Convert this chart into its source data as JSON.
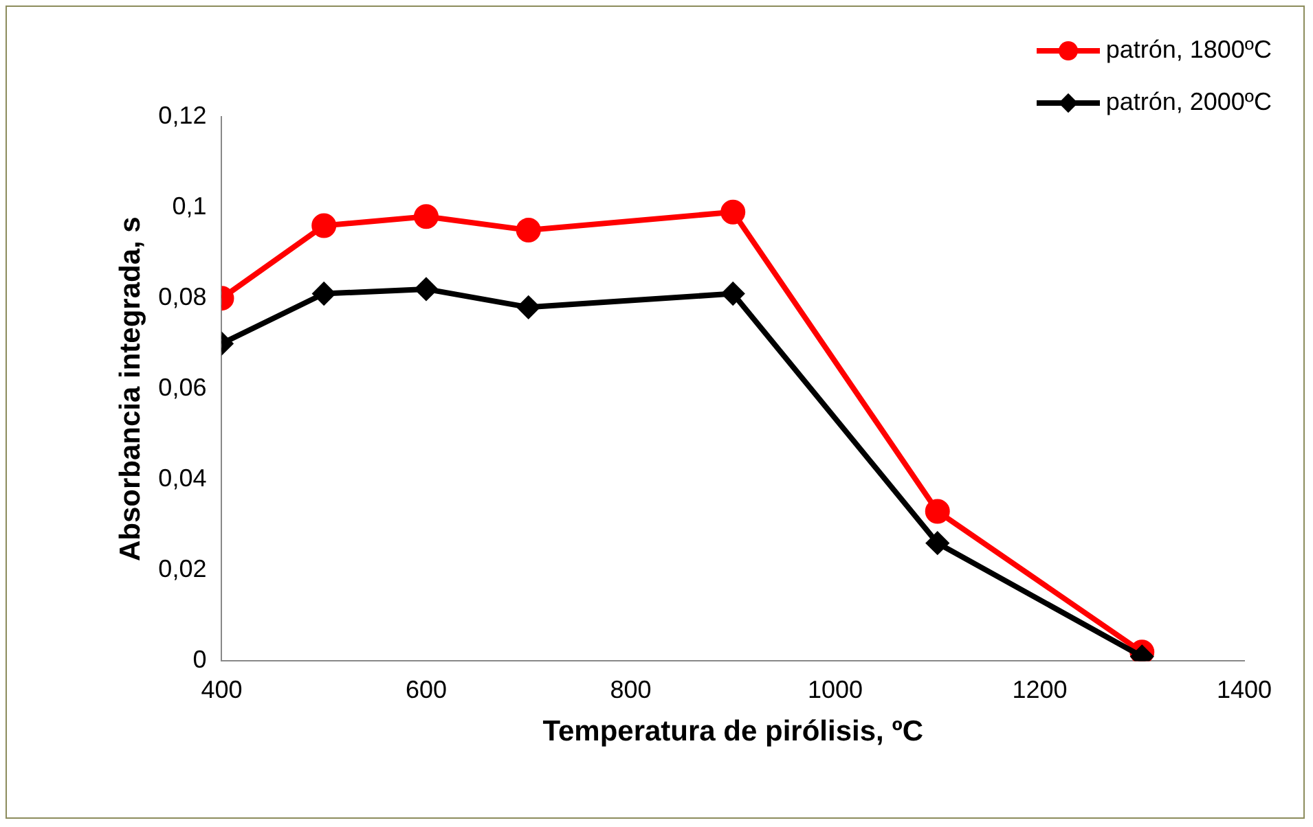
{
  "chart_data": {
    "type": "line",
    "xlabel": "Temperatura de pirólisis, ºC",
    "ylabel": "Absorbancia integrada, s",
    "x": [
      400,
      500,
      600,
      700,
      900,
      1100,
      1300
    ],
    "series": [
      {
        "name": "patrón, 1800ºC",
        "color": "#ff0000",
        "marker": "circle",
        "values": [
          0.08,
          0.096,
          0.098,
          0.095,
          0.099,
          0.033,
          0.002
        ]
      },
      {
        "name": "patrón, 2000ºC",
        "color": "#000000",
        "marker": "diamond",
        "values": [
          0.07,
          0.081,
          0.082,
          0.078,
          0.081,
          0.026,
          0.001
        ]
      }
    ],
    "xlim": [
      400,
      1400
    ],
    "xticks": [
      400,
      600,
      800,
      1000,
      1200,
      1400
    ],
    "ylim": [
      0,
      0.12
    ],
    "yticks": [
      {
        "value": 0,
        "label": "0"
      },
      {
        "value": 0.02,
        "label": "0,02"
      },
      {
        "value": 0.04,
        "label": "0,04"
      },
      {
        "value": 0.06,
        "label": "0,06"
      },
      {
        "value": 0.08,
        "label": "0,08"
      },
      {
        "value": 0.1,
        "label": "0,1"
      },
      {
        "value": 0.12,
        "label": "0,12"
      }
    ],
    "grid": false,
    "legend": "top right",
    "line_style": "solid"
  }
}
